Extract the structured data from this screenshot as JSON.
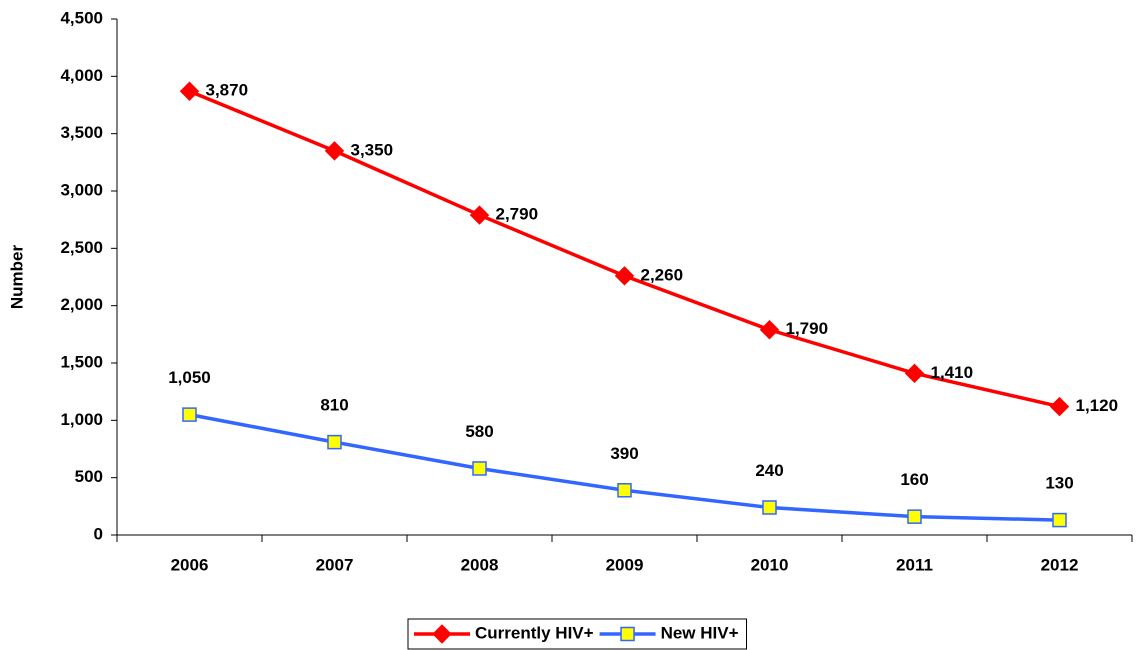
{
  "chart_data": {
    "type": "line",
    "y_label": "Number",
    "categories": [
      "2006",
      "2007",
      "2008",
      "2009",
      "2010",
      "2011",
      "2012"
    ],
    "series": [
      {
        "name": "Currently HIV+",
        "color": "#ff0000",
        "marker": "diamond",
        "marker_fill": "#ff0000",
        "values": [
          3870,
          3350,
          2790,
          2260,
          1790,
          1410,
          1120
        ],
        "value_labels": [
          "3,870",
          "3,350",
          "2,790",
          "2,260",
          "1,790",
          "1,410",
          "1,120"
        ]
      },
      {
        "name": "New HIV+",
        "color": "#3366ff",
        "marker": "square",
        "marker_fill": "#ffff00",
        "values": [
          1050,
          810,
          580,
          390,
          240,
          160,
          130
        ],
        "value_labels": [
          "1,050",
          "810",
          "580",
          "390",
          "240",
          "160",
          "130"
        ]
      }
    ],
    "ylim": [
      0,
      4500
    ],
    "yticks": [
      0,
      500,
      {
        "value": 1000,
        "label": "1,000"
      },
      {
        "value": 1500,
        "label": "1,500"
      },
      {
        "value": 2000,
        "label": "2,000"
      },
      {
        "value": 2500,
        "label": "2,500"
      },
      {
        "value": 3000,
        "label": "3,000"
      },
      {
        "value": 3500,
        "label": "3,500"
      },
      {
        "value": 4000,
        "label": "4,000"
      },
      {
        "value": 4500,
        "label": "4,500"
      }
    ],
    "grid": false,
    "legend": "bottom"
  }
}
